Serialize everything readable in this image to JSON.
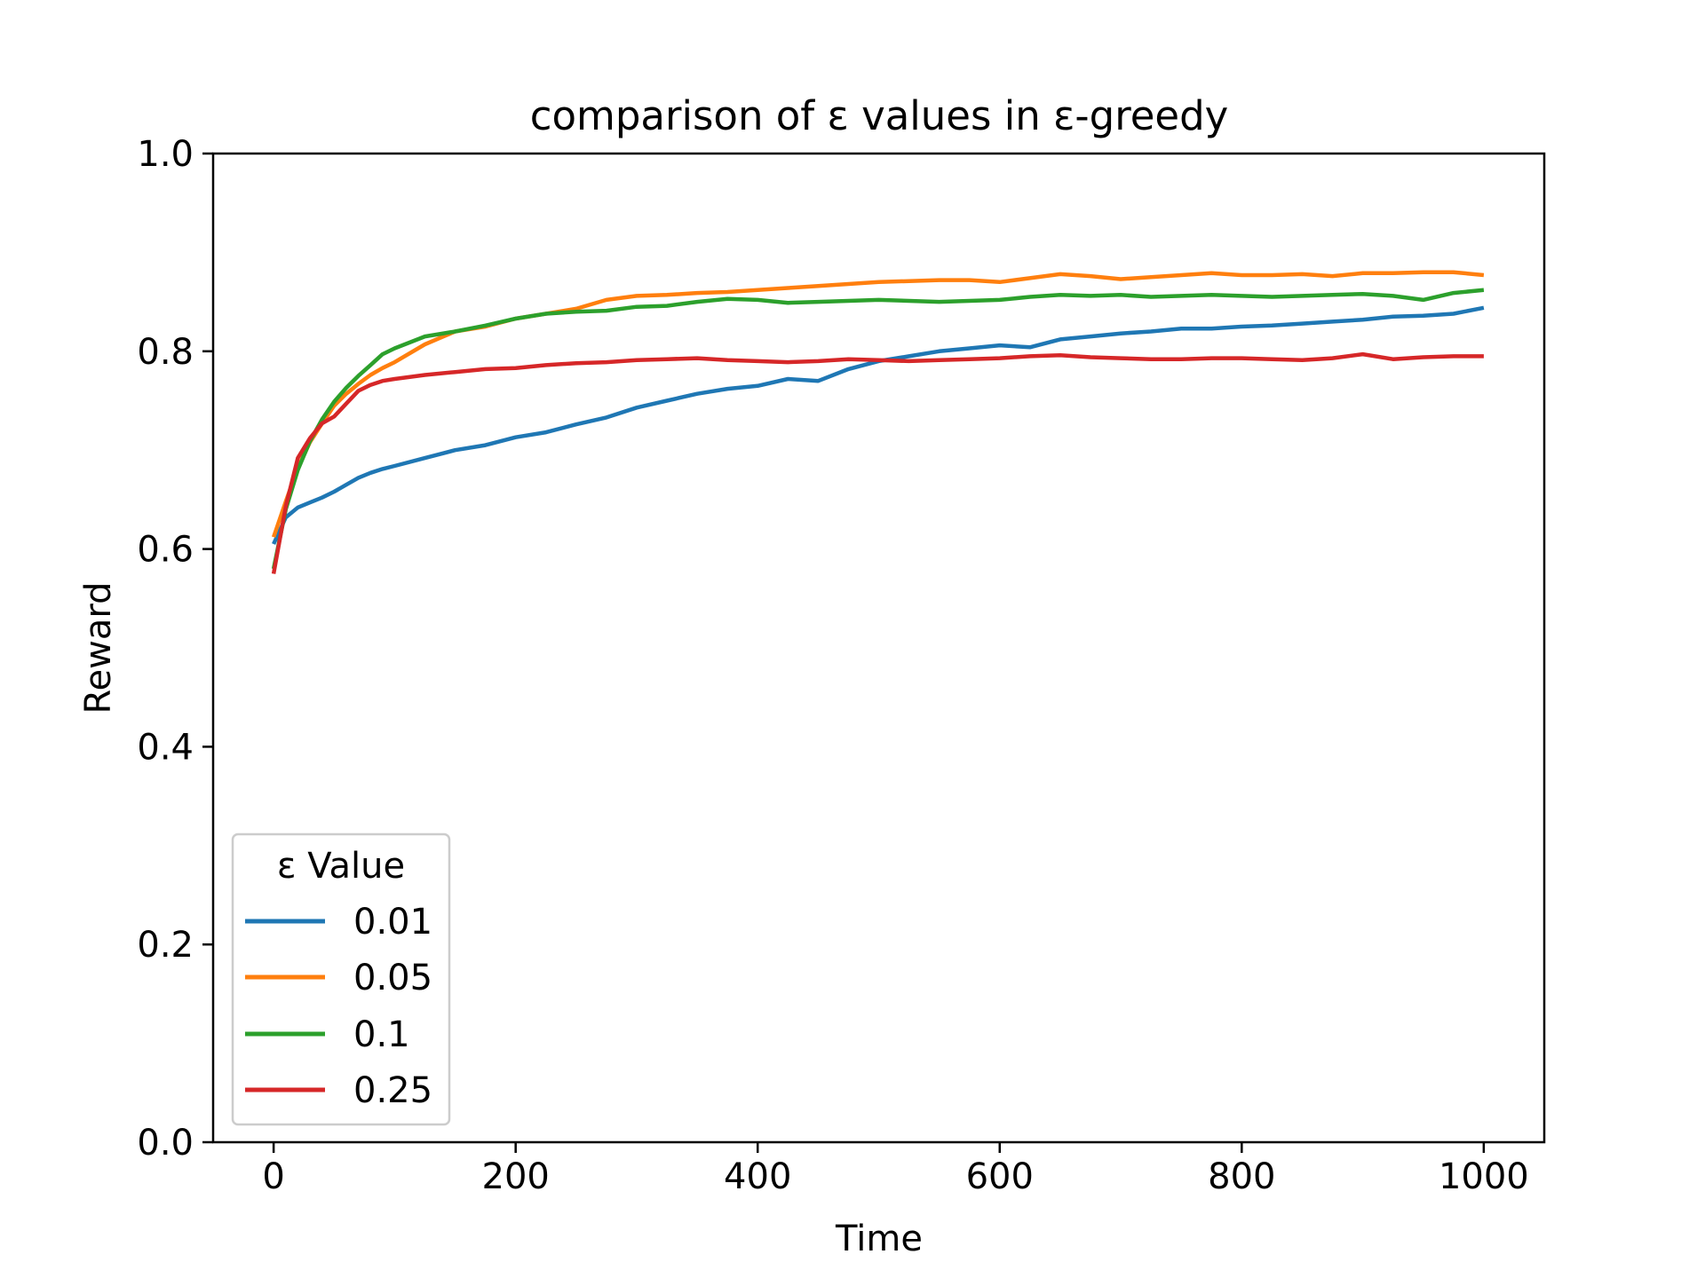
{
  "chart_data": {
    "type": "line",
    "title": "comparison of ε values in ε-greedy",
    "xlabel": "Time",
    "ylabel": "Reward",
    "xlim": [
      -50,
      1050
    ],
    "ylim": [
      0.0,
      1.0
    ],
    "xticks": [
      0,
      200,
      400,
      600,
      800,
      1000
    ],
    "xtick_labels": [
      "0",
      "200",
      "400",
      "600",
      "800",
      "1000"
    ],
    "yticks": [
      0.0,
      0.2,
      0.4,
      0.6,
      0.8,
      1.0
    ],
    "ytick_labels": [
      "0.0",
      "0.2",
      "0.4",
      "0.6",
      "0.8",
      "1.0"
    ],
    "grid": false,
    "legend": {
      "title": "ε Value",
      "placement": "lower-left"
    },
    "x": [
      0,
      10,
      20,
      30,
      40,
      50,
      60,
      70,
      80,
      90,
      100,
      125,
      150,
      175,
      200,
      225,
      250,
      275,
      300,
      325,
      350,
      375,
      400,
      425,
      450,
      475,
      500,
      525,
      550,
      575,
      600,
      625,
      650,
      675,
      700,
      725,
      750,
      775,
      800,
      825,
      850,
      875,
      900,
      925,
      950,
      975,
      1000
    ],
    "series": [
      {
        "name": "0.01",
        "color": "#1f77b4",
        "values": [
          0.605,
          0.632,
          0.642,
          0.647,
          0.652,
          0.658,
          0.665,
          0.672,
          0.677,
          0.681,
          0.684,
          0.692,
          0.7,
          0.705,
          0.713,
          0.718,
          0.726,
          0.733,
          0.743,
          0.75,
          0.757,
          0.762,
          0.765,
          0.772,
          0.77,
          0.782,
          0.79,
          0.795,
          0.8,
          0.803,
          0.806,
          0.804,
          0.812,
          0.815,
          0.818,
          0.82,
          0.823,
          0.823,
          0.825,
          0.826,
          0.828,
          0.83,
          0.832,
          0.835,
          0.836,
          0.838,
          0.844
        ]
      },
      {
        "name": "0.05",
        "color": "#ff7f0e",
        "values": [
          0.612,
          0.648,
          0.682,
          0.708,
          0.727,
          0.745,
          0.757,
          0.767,
          0.776,
          0.783,
          0.789,
          0.807,
          0.82,
          0.825,
          0.833,
          0.838,
          0.843,
          0.852,
          0.856,
          0.857,
          0.859,
          0.86,
          0.862,
          0.864,
          0.866,
          0.868,
          0.87,
          0.871,
          0.872,
          0.872,
          0.87,
          0.874,
          0.878,
          0.876,
          0.873,
          0.875,
          0.877,
          0.879,
          0.877,
          0.877,
          0.878,
          0.876,
          0.879,
          0.879,
          0.88,
          0.88,
          0.877
        ]
      },
      {
        "name": "0.1",
        "color": "#2ca02c",
        "values": [
          0.58,
          0.64,
          0.68,
          0.709,
          0.731,
          0.749,
          0.763,
          0.775,
          0.786,
          0.797,
          0.803,
          0.815,
          0.82,
          0.826,
          0.833,
          0.838,
          0.84,
          0.841,
          0.845,
          0.846,
          0.85,
          0.853,
          0.852,
          0.849,
          0.85,
          0.851,
          0.852,
          0.851,
          0.85,
          0.851,
          0.852,
          0.855,
          0.857,
          0.856,
          0.857,
          0.855,
          0.856,
          0.857,
          0.856,
          0.855,
          0.856,
          0.857,
          0.858,
          0.856,
          0.852,
          0.859,
          0.862
        ]
      },
      {
        "name": "0.25",
        "color": "#d62728",
        "values": [
          0.575,
          0.643,
          0.692,
          0.712,
          0.727,
          0.734,
          0.747,
          0.76,
          0.766,
          0.77,
          0.772,
          0.776,
          0.779,
          0.782,
          0.783,
          0.786,
          0.788,
          0.789,
          0.791,
          0.792,
          0.793,
          0.791,
          0.79,
          0.789,
          0.79,
          0.792,
          0.791,
          0.79,
          0.791,
          0.792,
          0.793,
          0.795,
          0.796,
          0.794,
          0.793,
          0.792,
          0.792,
          0.793,
          0.793,
          0.792,
          0.791,
          0.793,
          0.797,
          0.792,
          0.794,
          0.795,
          0.795
        ]
      }
    ]
  }
}
